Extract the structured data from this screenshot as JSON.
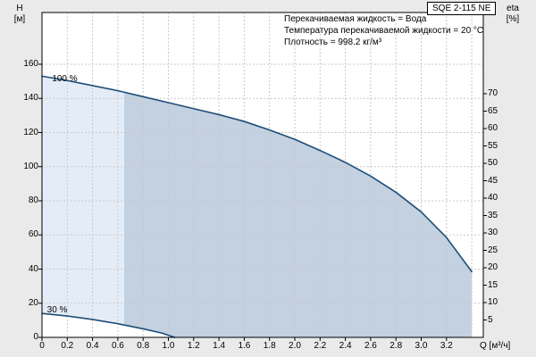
{
  "pump_model": "SQE 2-115 NE",
  "info_lines": [
    "Перекачиваемая жидкость = Вода",
    "Температура перекачиваемой жидкости = 20 °C",
    "Плотность = 998.2 кг/м³"
  ],
  "axes": {
    "left_title": "H",
    "left_unit": "[м]",
    "right_title": "eta",
    "right_unit": "[%]",
    "x_title": "Q [м³/ч]"
  },
  "chart_data": {
    "type": "line",
    "title": "SQE 2-115 NE",
    "xlabel": "Q [м³/ч]",
    "ylabel": "H [м]",
    "y2label": "eta [%]",
    "xlim": [
      0,
      3.49
    ],
    "ylim": [
      0,
      190
    ],
    "y2lim": [
      0,
      93
    ],
    "grid": true,
    "legend": "none",
    "x_ticks": [
      0,
      0.2,
      0.4,
      0.6,
      0.8,
      1.0,
      1.2,
      1.4,
      1.6,
      1.8,
      2.0,
      2.2,
      2.4,
      2.6,
      2.8,
      3.0,
      3.2
    ],
    "x_grid_extra": [
      3.4
    ],
    "y_ticks": [
      0,
      20,
      40,
      60,
      80,
      100,
      120,
      140,
      160
    ],
    "y2_ticks": [
      5,
      10,
      15,
      20,
      25,
      30,
      35,
      40,
      45,
      50,
      55,
      60,
      65,
      70
    ],
    "series": [
      {
        "name": "100 %",
        "x": [
          0,
          0.2,
          0.4,
          0.6,
          0.8,
          1.0,
          1.2,
          1.4,
          1.6,
          1.8,
          2.0,
          2.2,
          2.4,
          2.6,
          2.8,
          3.0,
          3.2,
          3.4
        ],
        "h": [
          153,
          150.5,
          147.5,
          144.5,
          141,
          137.5,
          134,
          130.5,
          126.5,
          121.5,
          116,
          109.5,
          102.5,
          94.5,
          85,
          73.5,
          58.5,
          38.5
        ]
      },
      {
        "name": "30 %",
        "x": [
          0,
          0.2,
          0.4,
          0.6,
          0.8,
          0.95,
          1.05
        ],
        "h": [
          14,
          12.5,
          10.5,
          8,
          5,
          2.5,
          0
        ]
      }
    ],
    "annotations": [
      {
        "text": "100 %",
        "q": 0.08,
        "h": 154
      },
      {
        "text": "30 %",
        "q": 0.04,
        "h": 19
      }
    ],
    "operating_range": {
      "split_q": 0.65
    },
    "colors": {
      "curve": "#1d4e79",
      "fill_light": "#e4edf7",
      "fill_dark": "#c3d1e0",
      "grid": "#c9c9c9",
      "axis": "#000000",
      "plot_bg": "#ffffff",
      "page_bg": "#eaeaea"
    }
  }
}
